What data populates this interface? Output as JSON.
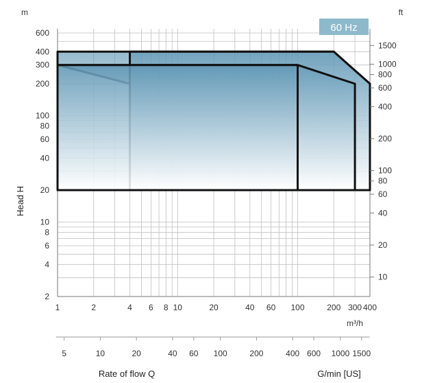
{
  "chart_data": {
    "type": "area",
    "title": "",
    "badge": "60 Hz",
    "xlabel": "Rate of flow Q",
    "xunit_primary": "m³/h",
    "xlabel_secondary": "G/min [US]",
    "ylabel": "Head  H",
    "yunit_left": "m",
    "yunit_right": "ft",
    "xscale": "log",
    "yscale": "log",
    "xlim": [
      1,
      400
    ],
    "ylim": [
      2,
      600
    ],
    "grid": true,
    "colors": {
      "outline": "#111111",
      "fill_top": "#5f97b5",
      "fill_bottom": "#ffffff",
      "badge_bg": "#8dbacb",
      "grid": "#bfbfbf"
    },
    "x_ticks_primary": [
      "1",
      "2",
      "4",
      "6",
      "8",
      "10",
      "20",
      "40",
      "60",
      "100",
      "200",
      "300",
      "400"
    ],
    "x_ticks_primary_values": [
      1,
      2,
      4,
      6,
      8,
      10,
      20,
      40,
      60,
      100,
      200,
      300,
      400
    ],
    "x_ticks_secondary": [
      "5",
      "10",
      "20",
      "40",
      "60",
      "100",
      "200",
      "400",
      "600",
      "1000",
      "1500"
    ],
    "x_ticks_secondary_values": [
      5,
      10,
      20,
      40,
      60,
      100,
      200,
      400,
      600,
      1000,
      1500
    ],
    "y_ticks_left": [
      "600",
      "400",
      "300",
      "200",
      "100",
      "80",
      "60",
      "40",
      "20",
      "10",
      "8",
      "6",
      "4",
      "2"
    ],
    "y_ticks_left_values": [
      600,
      400,
      300,
      200,
      100,
      80,
      60,
      40,
      20,
      10,
      8,
      6,
      4,
      2
    ],
    "y_ticks_right": [
      "1500",
      "1000",
      "800",
      "600",
      "400",
      "200",
      "100",
      "80",
      "60",
      "40",
      "20",
      "10"
    ],
    "y_ticks_right_values": [
      1500,
      1000,
      800,
      600,
      400,
      200,
      100,
      80,
      60,
      40,
      20,
      10
    ],
    "series": [
      {
        "points": [
          [
            1,
            400
          ],
          [
            200,
            400
          ],
          [
            400,
            200
          ],
          [
            400,
            20
          ],
          [
            4,
            20
          ],
          [
            4,
            200
          ],
          [
            1,
            300
          ],
          [
            1,
            400
          ]
        ]
      },
      {
        "points": [
          [
            4,
            400
          ],
          [
            200,
            400
          ],
          [
            400,
            200
          ],
          [
            400,
            20
          ],
          [
            4,
            20
          ],
          [
            4,
            400
          ]
        ]
      },
      {
        "points": [
          [
            1,
            300
          ],
          [
            100,
            300
          ],
          [
            300,
            200
          ],
          [
            300,
            20
          ],
          [
            1,
            20
          ],
          [
            1,
            300
          ]
        ]
      },
      {
        "points": [
          [
            1,
            20
          ],
          [
            1,
            300
          ],
          [
            100,
            300
          ],
          [
            100,
            20
          ],
          [
            1,
            20
          ]
        ]
      }
    ]
  }
}
